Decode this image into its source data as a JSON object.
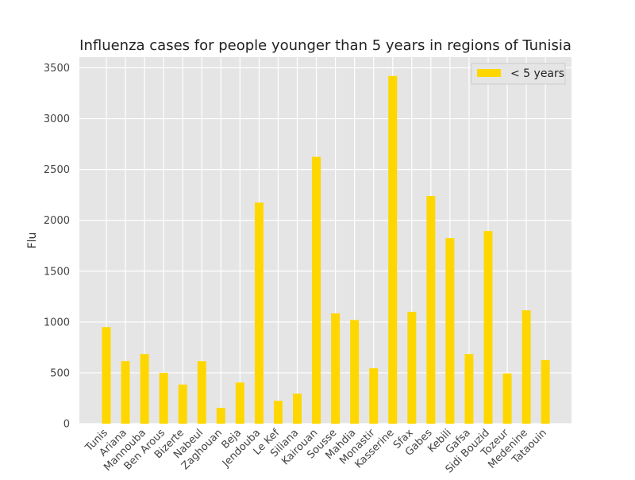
{
  "chart_data": {
    "type": "bar",
    "title": "Influenza cases for people younger than 5 years in regions of Tunisia",
    "xlabel": "",
    "ylabel": "Flu",
    "ylim": [
      0,
      3500
    ],
    "yticks": [
      0,
      500,
      1000,
      1500,
      2000,
      2500,
      3000,
      3500
    ],
    "grid": true,
    "legend_position": "top-right",
    "categories": [
      "Tunis",
      "Ariana",
      "Mannouba",
      "Ben Arous",
      "Bizerte",
      "Nabeul",
      "Zaghouan",
      "Beja",
      "Jendouba",
      "Le Kef",
      "Siliana",
      "Kairouan",
      "Sousse",
      "Mahdia",
      "Monastir",
      "Kasserine",
      "Sfax",
      "Gabes",
      "Kebili",
      "Gafsa",
      "Sidi Bouzid",
      "Tozeur",
      "Medenine",
      "Tataouin"
    ],
    "series": [
      {
        "name": "< 5 years",
        "color": "#ffd700",
        "values": [
          950,
          615,
          685,
          500,
          385,
          615,
          155,
          405,
          2175,
          225,
          295,
          2625,
          1085,
          1020,
          545,
          3420,
          1100,
          2240,
          1825,
          685,
          1895,
          495,
          1115,
          625
        ]
      }
    ]
  },
  "colors": {
    "plot_background": "#e5e5e5",
    "grid": "#ffffff"
  }
}
